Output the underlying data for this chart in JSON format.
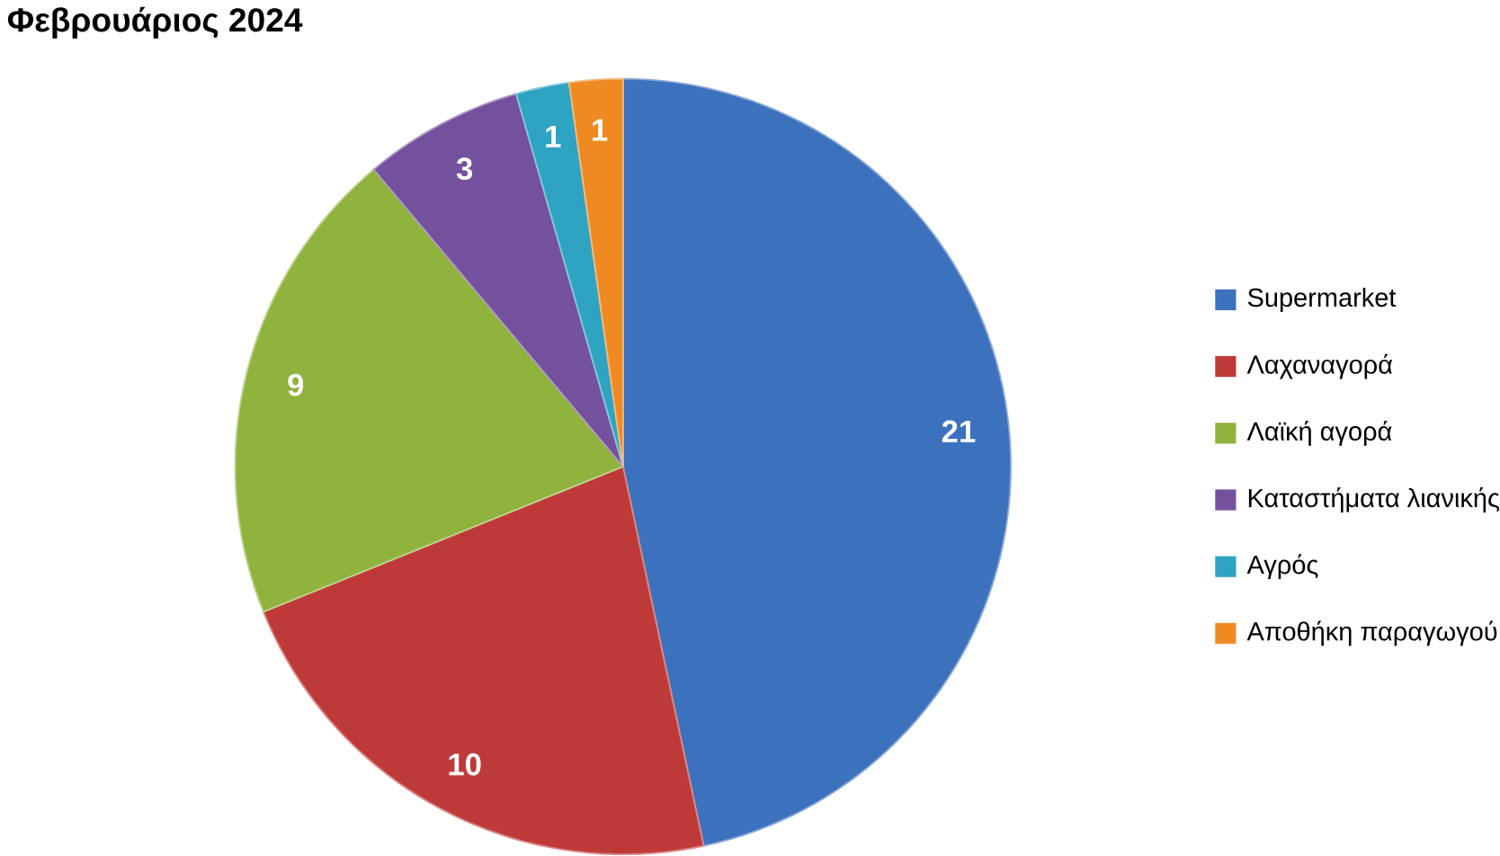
{
  "chart_data": {
    "type": "pie",
    "title": "Φεβρουάριος 2024",
    "categories": [
      "Supermarket",
      "Λαχαναγορά",
      "Λαϊκή αγορά",
      "Καταστήματα λιανικής",
      "Αγρός",
      "Αποθήκη παραγωγού"
    ],
    "values": [
      21,
      10,
      9,
      3,
      1,
      1
    ],
    "colors": [
      "#3c71bd",
      "#be3a38",
      "#8fb33d",
      "#74519c",
      "#2ea3c2",
      "#ef8a22"
    ],
    "data_labels": true,
    "legend": "right"
  }
}
